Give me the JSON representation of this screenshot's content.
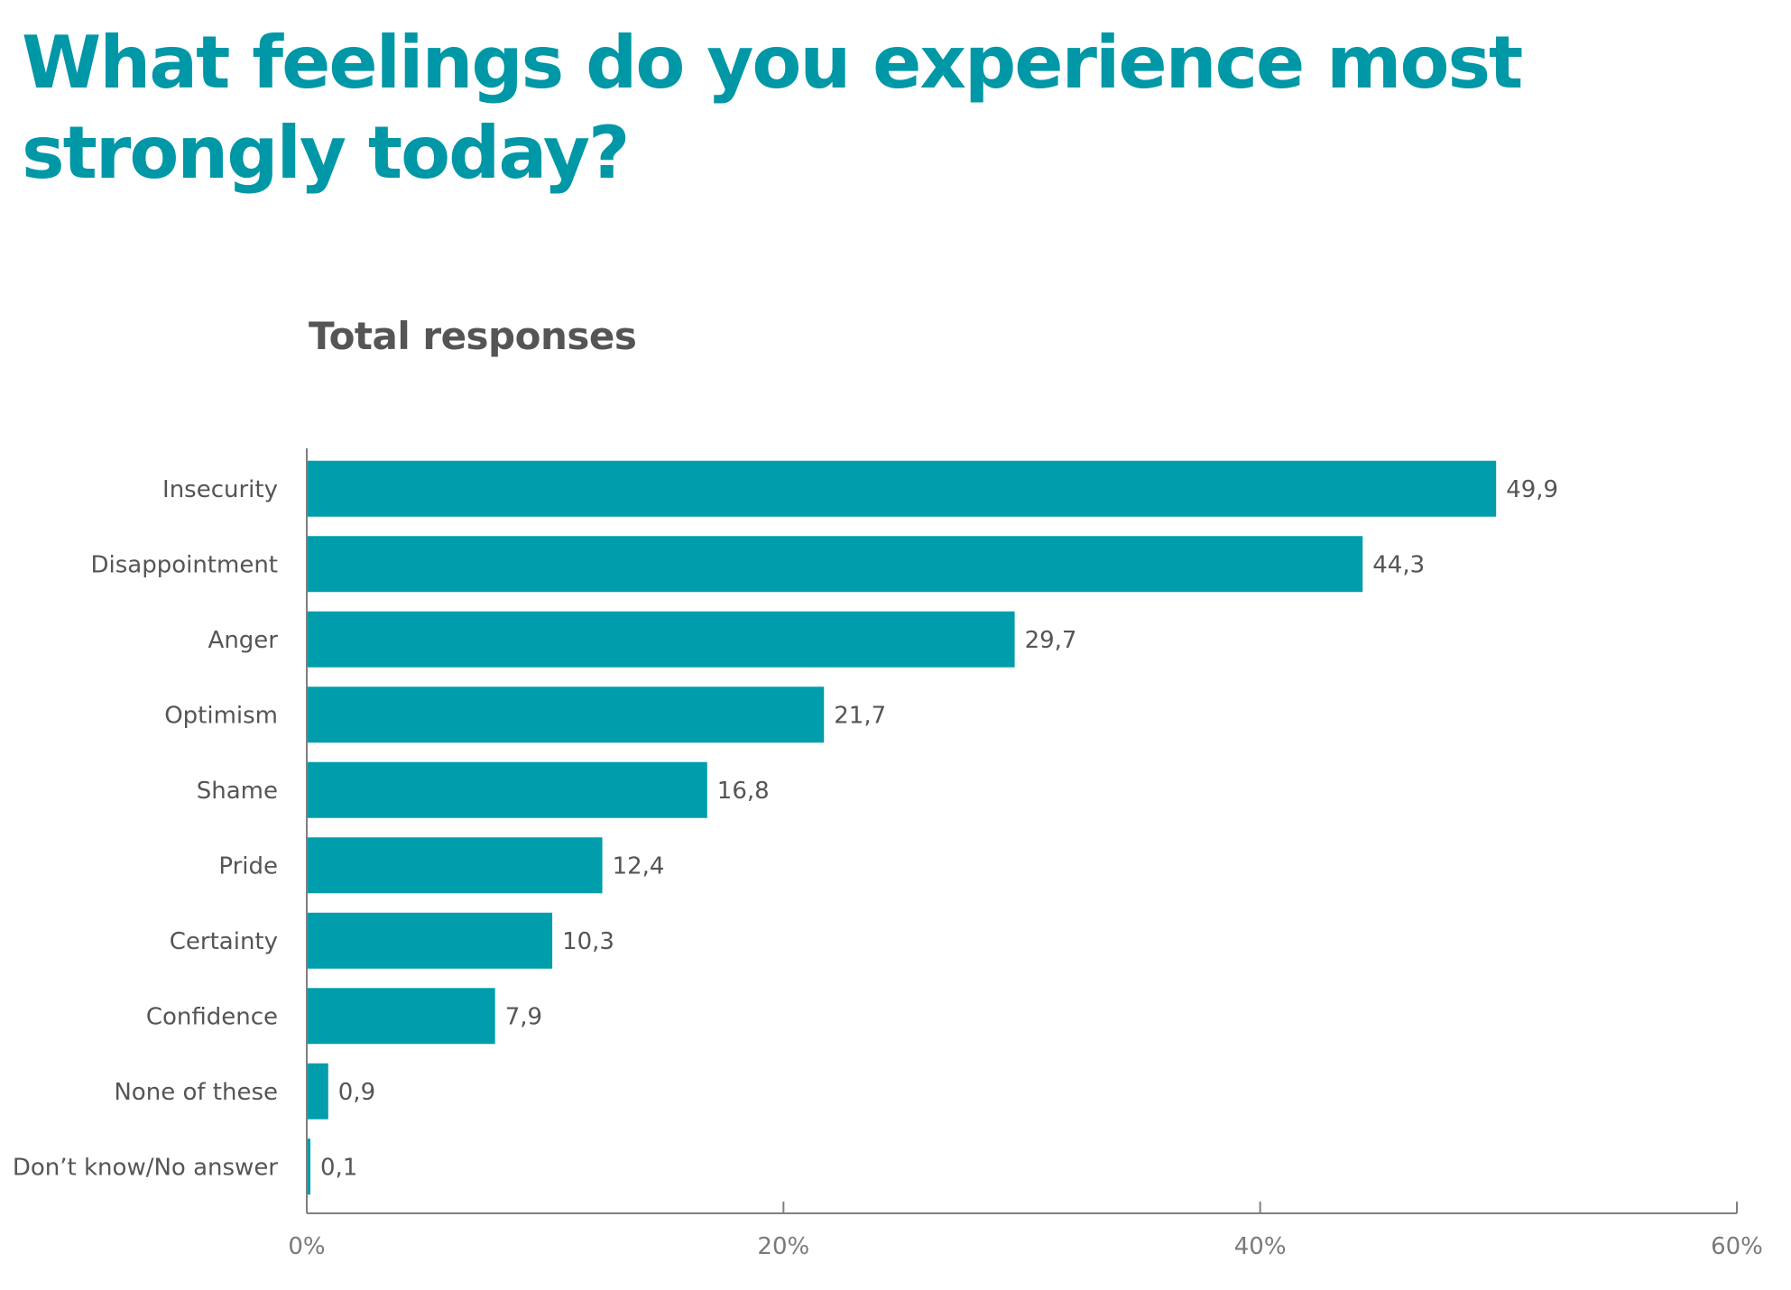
{
  "colors": {
    "title": "#0097a7",
    "subtitle": "#555555",
    "bar": "#009dad",
    "axis": "#7f7f7f",
    "label": "#555555"
  },
  "chart_data": {
    "type": "bar",
    "orientation": "horizontal",
    "title": "What feelings do you experience most strongly today?",
    "subtitle": "Total responses",
    "categories": [
      "Insecurity",
      "Disappointment",
      "Anger",
      "Optimism",
      "Shame",
      "Pride",
      "Certainty",
      "Confidence",
      "None of these",
      "Don’t know/No answer"
    ],
    "values": [
      49.9,
      44.3,
      29.7,
      21.7,
      16.8,
      12.4,
      10.3,
      7.9,
      0.9,
      0.1
    ],
    "value_labels": [
      "49,9",
      "44,3",
      "29,7",
      "21,7",
      "16,8",
      "12,4",
      "10,3",
      "7,9",
      "0,9",
      "0,1"
    ],
    "xlim": [
      0,
      60
    ],
    "xticks": [
      0,
      20,
      40,
      60
    ],
    "xtick_labels": [
      "0%",
      "20%",
      "40%",
      "60%"
    ],
    "xlabel": "",
    "ylabel": "",
    "grid": false,
    "legend": "none"
  }
}
